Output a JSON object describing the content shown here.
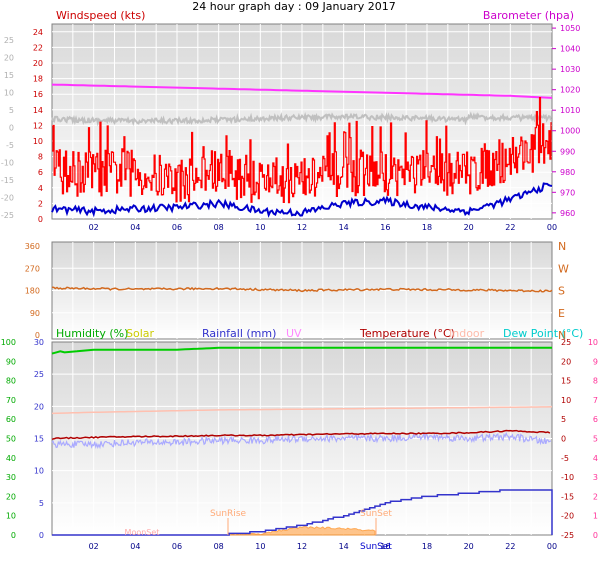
{
  "title": "24 hour graph day : 09 January 2017",
  "x_ticks": [
    "02",
    "04",
    "06",
    "08",
    "10",
    "12",
    "14",
    "16",
    "18",
    "20",
    "22",
    "00"
  ],
  "colors": {
    "wind": "#ff0000",
    "wind_label": "#cc0000",
    "wind_avg": "#0000cc",
    "baro": "#ff33ff",
    "baro_label": "#cc00cc",
    "temp_line": "#b00000",
    "dir": "#d2691e",
    "hum": "#00cc00",
    "solar": "#ff9933",
    "rain": "#3333cc",
    "uv": "#ff88ff",
    "indoor": "#ffbbaa",
    "dew": "#00dddd",
    "gray": "#c8c8c8",
    "chill": "#aaaaff",
    "right_axis2": "#ff3399"
  },
  "panel1": {
    "left_label": "Windspeed (kts)",
    "right_label": "Barometer (hpa)",
    "left_ticks_dark": [
      "24",
      "22",
      "20",
      "18",
      "16",
      "14",
      "12",
      "10",
      "8",
      "6",
      "4",
      "2",
      "0"
    ],
    "left_ticks_gray": [
      "25",
      "20",
      "15",
      "10",
      "5",
      "0",
      "-5",
      "-10",
      "-15",
      "-20",
      "-25"
    ],
    "right_ticks": [
      "1050",
      "1040",
      "1030",
      "1020",
      "1010",
      "1000",
      "990",
      "980",
      "970",
      "960"
    ]
  },
  "panel2": {
    "left_ticks": [
      "360",
      "270",
      "180",
      "90",
      "0"
    ],
    "right_ticks": [
      "N",
      "W",
      "S",
      "E",
      "N"
    ]
  },
  "panel3": {
    "legend": {
      "humidity": "Humidity (%)",
      "solar": "Solar",
      "rainfall": "Rainfall (mm)",
      "uv": "UV",
      "temperature": "Temperature (°C)",
      "indoor": "Indoor",
      "dew": "Dew Point (°C)"
    },
    "hum_ticks": [
      "100",
      "90",
      "80",
      "70",
      "60",
      "50",
      "40",
      "30",
      "20",
      "10",
      "0"
    ],
    "rain_ticks": [
      "30",
      "25",
      "20",
      "15",
      "10",
      "5",
      "0"
    ],
    "temp_ticks": [
      "25",
      "20",
      "15",
      "10",
      "5",
      "0",
      "-5",
      "-10",
      "-15",
      "-20",
      "-25"
    ],
    "uv_ticks": [
      "10",
      "9",
      "8",
      "7",
      "6",
      "5",
      "4",
      "3",
      "2",
      "1",
      "0"
    ],
    "sunrise": "SunRise",
    "sunset": "SunSet",
    "moonset": "MoonSet",
    "sunset_axis": "SunSet"
  },
  "chart_data": [
    {
      "type": "line",
      "title": "24 hour graph day : 09 January 2017",
      "xlabel": "",
      "ylabel": "Windspeed (kts)",
      "ylabel_right": "Barometer (hpa)",
      "x_hours": [
        0,
        2,
        4,
        6,
        8,
        10,
        12,
        14,
        16,
        18,
        20,
        22,
        24
      ],
      "ylim": [
        0,
        25
      ],
      "ylim_right": [
        957,
        1052
      ],
      "series": [
        {
          "name": "Barometer (hpa)",
          "values": [
            1022.5,
            1022,
            1021.5,
            1021,
            1020.5,
            1020,
            1019.5,
            1019,
            1018.5,
            1018,
            1017.5,
            1017,
            1016
          ]
        },
        {
          "name": "Windspeed (kts)",
          "values": [
            5,
            5,
            5,
            4,
            5,
            4,
            4,
            5,
            5,
            5,
            5,
            7,
            9
          ]
        },
        {
          "name": "Windspeed (kts)",
          "values": [
            1.3,
            1,
            1.3,
            1.5,
            2,
            1,
            0.8,
            2,
            2.3,
            1.5,
            1,
            2.5,
            4.5
          ]
        }
      ]
    },
    {
      "type": "line",
      "title": "",
      "ylabel": "",
      "x_hours": [
        0,
        4,
        8,
        12,
        16,
        20,
        24
      ],
      "ylim": [
        0,
        360
      ],
      "series": [
        {
          "name": "",
          "values": [
            190,
            185,
            188,
            180,
            185,
            182,
            178
          ]
        }
      ]
    },
    {
      "type": "line",
      "title": "",
      "x_hours": [
        0,
        2,
        4,
        6,
        8,
        10,
        12,
        14,
        16,
        18,
        20,
        22,
        24
      ],
      "ylim": [
        0,
        30
      ],
      "series": [
        {
          "name": "Humidity (%)",
          "values": [
            94,
            96,
            96,
            96,
            97,
            97,
            97,
            97,
            97,
            97,
            97,
            97,
            97
          ]
        },
        {
          "name": "Temperature (°C)",
          "values": [
            0,
            0.3,
            0.5,
            0.6,
            0.8,
            0.8,
            1,
            1.2,
            1.3,
            1.3,
            1.5,
            2,
            1.5
          ]
        },
        {
          "name": "Indoor",
          "values": [
            6.5,
            6.8,
            7,
            7.2,
            7.4,
            7.5,
            7.6,
            7.7,
            7.8,
            7.9,
            8,
            8.1,
            8.2
          ]
        },
        {
          "name": "Dew Point (°C)",
          "values": [
            -1.5,
            -1.5,
            -1,
            -1,
            -0.5,
            -0.5,
            0,
            0,
            0,
            0.5,
            0,
            0.5,
            -1
          ]
        },
        {
          "name": "Rainfall (mm)",
          "values": [
            0,
            0,
            0,
            0,
            0,
            0.5,
            1.5,
            3,
            5,
            6,
            6.5,
            7,
            7
          ]
        },
        {
          "name": "Solar",
          "values": [
            0,
            0,
            0,
            0,
            0,
            0.2,
            1.2,
            1,
            0.5,
            0,
            0,
            0,
            0
          ]
        }
      ]
    }
  ]
}
